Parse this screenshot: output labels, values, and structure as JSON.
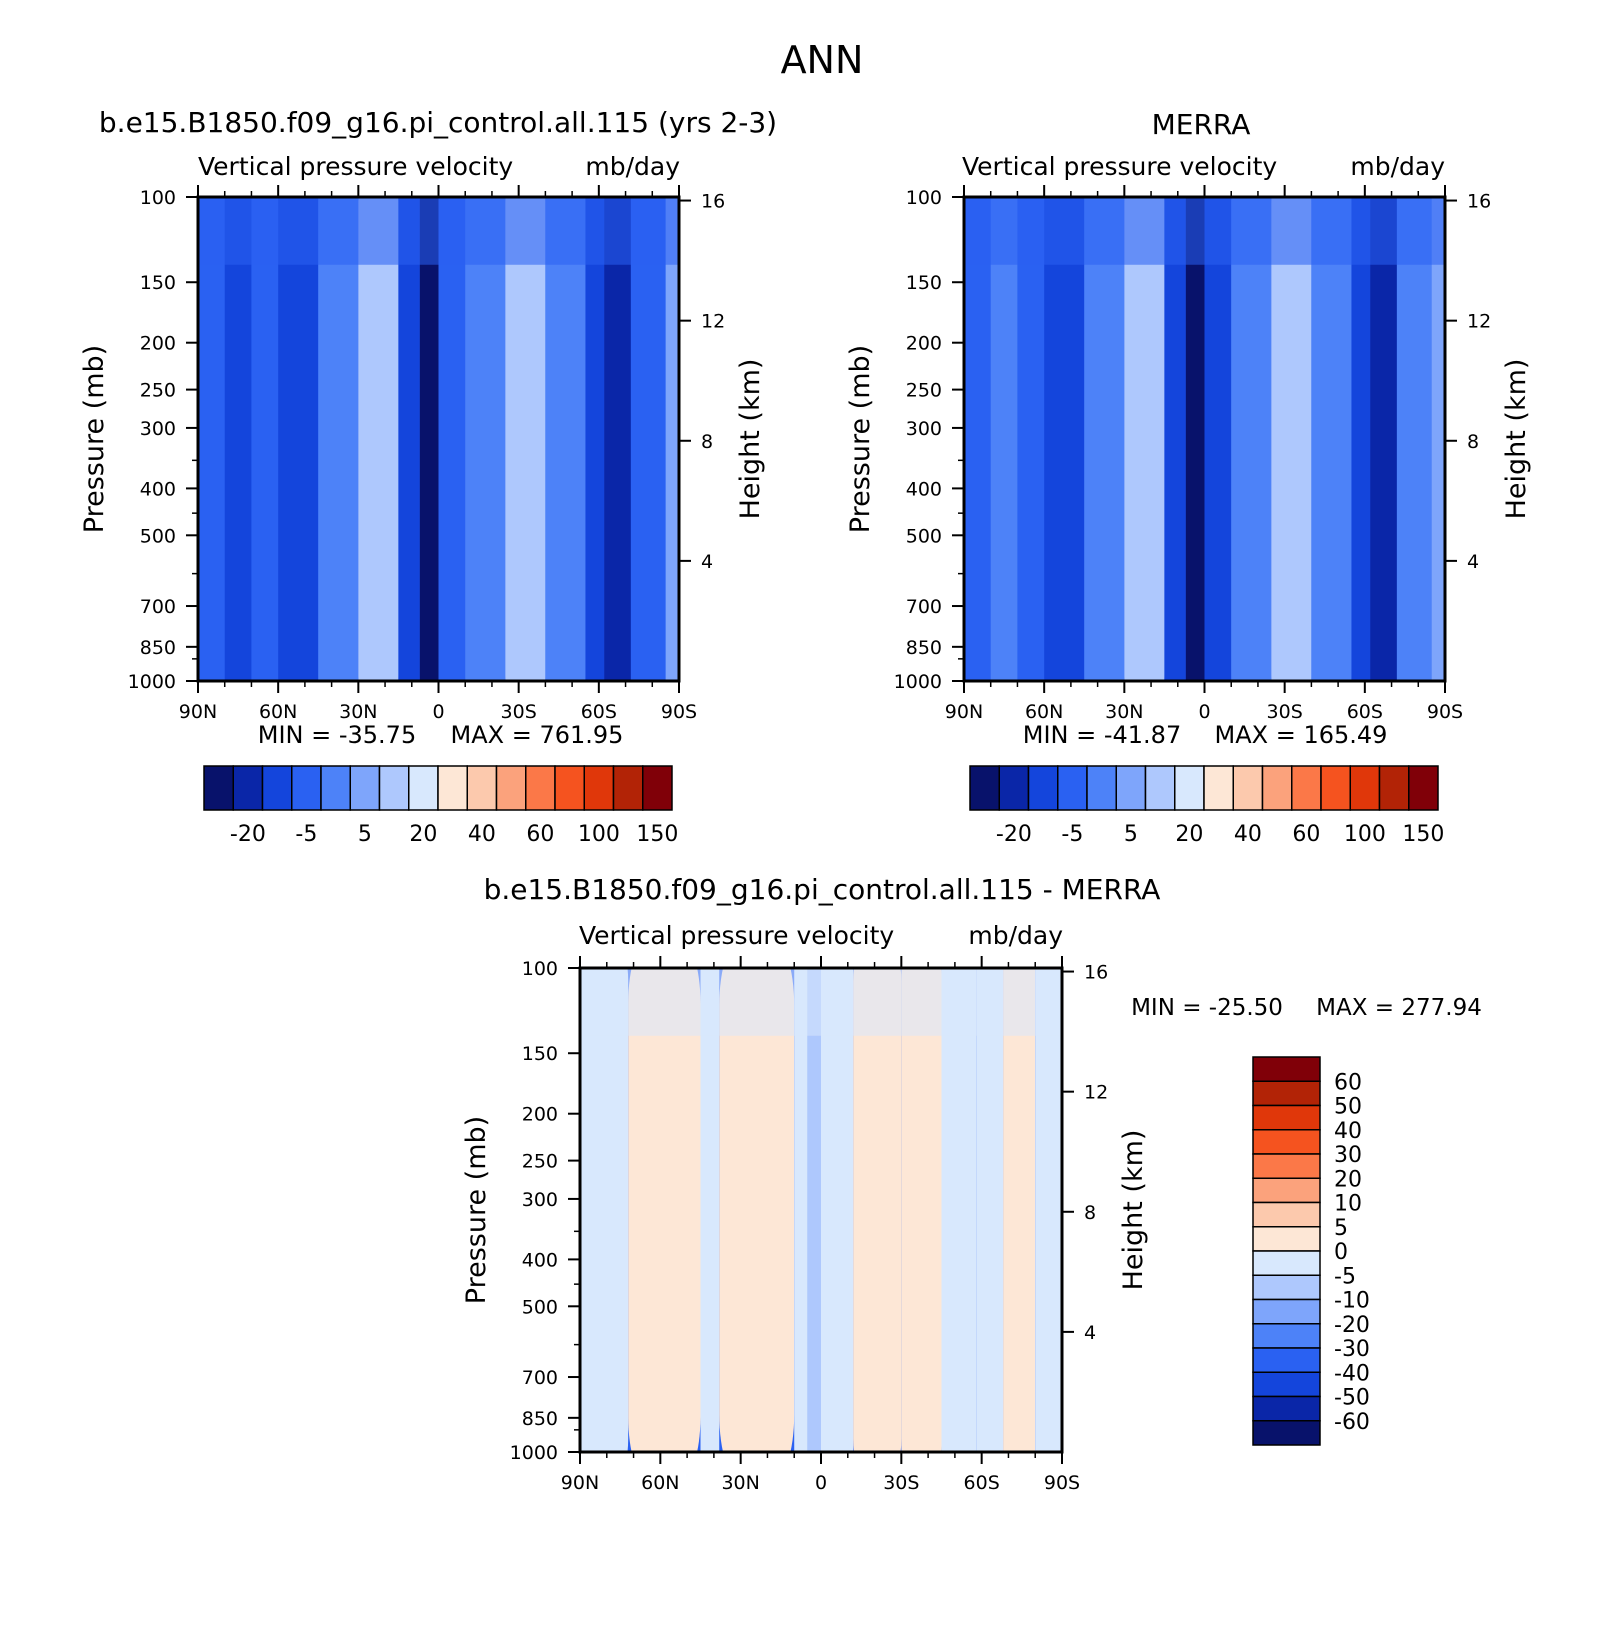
{
  "page_title": "ANN",
  "colors": {
    "levels": [
      "#08126b",
      "#0a26a8",
      "#1445dc",
      "#2a61f2",
      "#4d82f8",
      "#7ea5fb",
      "#aec8fd",
      "#d8e8fd",
      "#fde7d6",
      "#fcc9ad",
      "#fba27c",
      "#fb7848",
      "#f5531f",
      "#e0370a",
      "#b22306",
      "#800008"
    ]
  },
  "chart_data": [
    {
      "id": "model",
      "type": "heatmap",
      "title": "b.e15.B1850.f09_g16.pi_control.all.115 (yrs 2-3)",
      "subtitle_left": "Vertical pressure velocity",
      "subtitle_right": "mb/day",
      "xlabel": "",
      "ylabel": "Pressure (mb)",
      "ylabel_right": "Height (km)",
      "x_ticks": [
        "90N",
        "60N",
        "30N",
        "0",
        "30S",
        "60S",
        "90S"
      ],
      "x_values": [
        90,
        60,
        30,
        0,
        -30,
        -60,
        -90
      ],
      "y_ticks": [
        100,
        150,
        200,
        250,
        300,
        400,
        500,
        700,
        850,
        1000
      ],
      "y_range": [
        1000,
        100
      ],
      "height_ticks": [
        4,
        8,
        12,
        16
      ],
      "min_label": "MIN = -35.75",
      "max_label": "MAX = 761.95",
      "colorbar": {
        "orientation": "horizontal",
        "labels": [
          "-20",
          "-5",
          "5",
          "20",
          "40",
          "60",
          "100",
          "150"
        ]
      },
      "field_bands": [
        {
          "lat": 90,
          "level": 3
        },
        {
          "lat": 80,
          "level": 2
        },
        {
          "lat": 70,
          "level": 3
        },
        {
          "lat": 60,
          "level": 2
        },
        {
          "lat": 45,
          "level": 4
        },
        {
          "lat": 30,
          "level": 6
        },
        {
          "lat": 15,
          "level": 2
        },
        {
          "lat": 7,
          "level": 0
        },
        {
          "lat": 0,
          "level": 3
        },
        {
          "lat": -10,
          "level": 4
        },
        {
          "lat": -25,
          "level": 6
        },
        {
          "lat": -40,
          "level": 4
        },
        {
          "lat": -55,
          "level": 2
        },
        {
          "lat": -62,
          "level": 1
        },
        {
          "lat": -72,
          "level": 3
        },
        {
          "lat": -85,
          "level": 5
        }
      ]
    },
    {
      "id": "obs",
      "type": "heatmap",
      "title": "MERRA",
      "subtitle_left": "Vertical pressure velocity",
      "subtitle_right": "mb/day",
      "xlabel": "",
      "ylabel": "Pressure (mb)",
      "ylabel_right": "Height (km)",
      "x_ticks": [
        "90N",
        "60N",
        "30N",
        "0",
        "30S",
        "60S",
        "90S"
      ],
      "x_values": [
        90,
        60,
        30,
        0,
        -30,
        -60,
        -90
      ],
      "y_ticks": [
        100,
        150,
        200,
        250,
        300,
        400,
        500,
        700,
        850,
        1000
      ],
      "y_range": [
        1000,
        100
      ],
      "height_ticks": [
        4,
        8,
        12,
        16
      ],
      "min_label": "MIN = -41.87",
      "max_label": "MAX = 165.49",
      "colorbar": {
        "orientation": "horizontal",
        "labels": [
          "-20",
          "-5",
          "5",
          "20",
          "40",
          "60",
          "100",
          "150"
        ]
      },
      "field_bands": [
        {
          "lat": 90,
          "level": 3
        },
        {
          "lat": 80,
          "level": 4
        },
        {
          "lat": 70,
          "level": 3
        },
        {
          "lat": 60,
          "level": 2
        },
        {
          "lat": 45,
          "level": 4
        },
        {
          "lat": 30,
          "level": 6
        },
        {
          "lat": 15,
          "level": 2
        },
        {
          "lat": 7,
          "level": 0
        },
        {
          "lat": 0,
          "level": 2
        },
        {
          "lat": -10,
          "level": 4
        },
        {
          "lat": -25,
          "level": 6
        },
        {
          "lat": -40,
          "level": 4
        },
        {
          "lat": -55,
          "level": 2
        },
        {
          "lat": -62,
          "level": 1
        },
        {
          "lat": -72,
          "level": 4
        },
        {
          "lat": -85,
          "level": 5
        }
      ]
    },
    {
      "id": "diff",
      "type": "heatmap",
      "title": "b.e15.B1850.f09_g16.pi_control.all.115 - MERRA",
      "subtitle_left": "Vertical pressure velocity",
      "subtitle_right": "mb/day",
      "xlabel": "",
      "ylabel": "Pressure (mb)",
      "ylabel_right": "Height (km)",
      "x_ticks": [
        "90N",
        "60N",
        "30N",
        "0",
        "30S",
        "60S",
        "90S"
      ],
      "x_values": [
        90,
        60,
        30,
        0,
        -30,
        -60,
        -90
      ],
      "y_ticks": [
        100,
        150,
        200,
        250,
        300,
        400,
        500,
        700,
        850,
        1000
      ],
      "y_range": [
        1000,
        100
      ],
      "height_ticks": [
        4,
        8,
        12,
        16
      ],
      "min_label": "MIN = -25.50",
      "max_label": "MAX = 277.94",
      "colorbar": {
        "orientation": "vertical",
        "labels": [
          "60",
          "50",
          "40",
          "30",
          "20",
          "10",
          "5",
          "0",
          "-5",
          "-10",
          "-20",
          "-30",
          "-40",
          "-50",
          "-60"
        ]
      },
      "field_bands": [
        {
          "lat": 90,
          "level": 7
        },
        {
          "lat": 72,
          "level": 8
        },
        {
          "lat": 45,
          "level": 7
        },
        {
          "lat": 38,
          "level": 8
        },
        {
          "lat": 10,
          "level": 7
        },
        {
          "lat": 5,
          "level": 6
        },
        {
          "lat": 0,
          "level": 7
        },
        {
          "lat": -12,
          "level": 8
        },
        {
          "lat": -30,
          "level": 8
        },
        {
          "lat": -45,
          "level": 7
        },
        {
          "lat": -58,
          "level": 7
        },
        {
          "lat": -68,
          "level": 8
        },
        {
          "lat": -80,
          "level": 7
        }
      ]
    }
  ]
}
